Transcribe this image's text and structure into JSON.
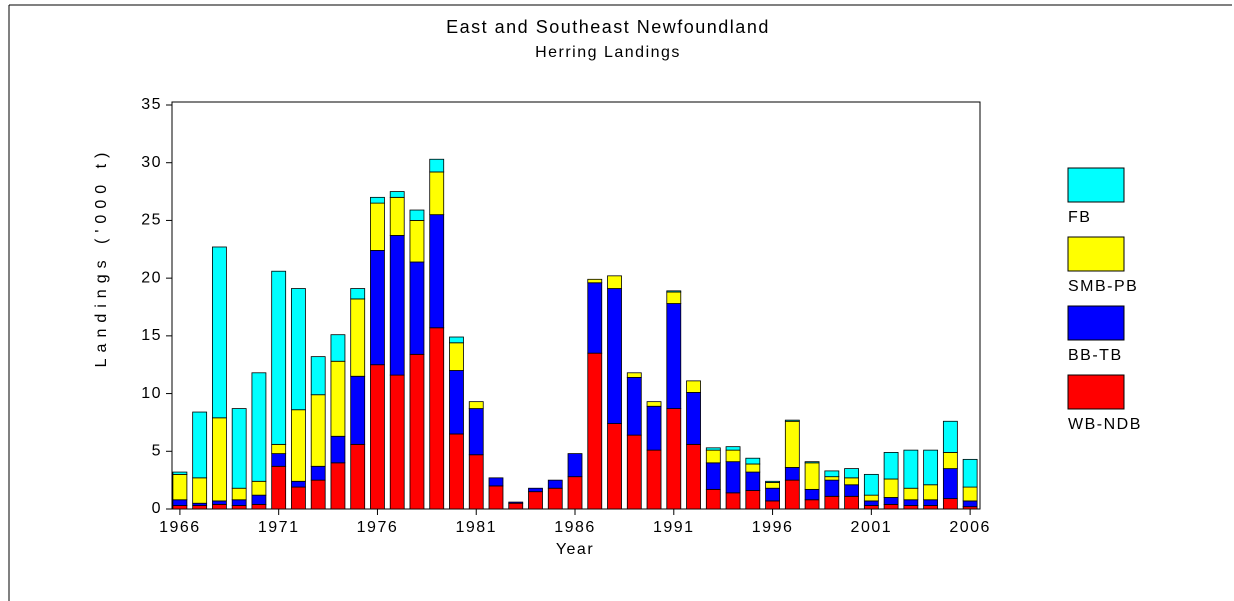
{
  "chart_data": {
    "type": "stacked-bar",
    "title": "East and Southeast Newfoundland",
    "subtitle": "Herring Landings",
    "x_label": "Year",
    "y_label": "Landings  ('000 t)",
    "x": [
      1966,
      1967,
      1968,
      1969,
      1970,
      1971,
      1972,
      1973,
      1974,
      1975,
      1976,
      1977,
      1978,
      1979,
      1980,
      1981,
      1982,
      1983,
      1984,
      1985,
      1986,
      1987,
      1988,
      1989,
      1990,
      1991,
      1992,
      1993,
      1994,
      1995,
      1996,
      1997,
      1998,
      1999,
      2000,
      2001,
      2002,
      2003,
      2004,
      2005,
      2006
    ],
    "xlim": [
      1965.6,
      2006.5
    ],
    "xticks": [
      1966,
      1971,
      1976,
      1981,
      1986,
      1991,
      1996,
      2001,
      2006
    ],
    "ylim": [
      0,
      35
    ],
    "yticks": [
      0,
      5,
      10,
      15,
      20,
      25,
      30,
      35
    ],
    "series": [
      {
        "name": "WB-NDB",
        "color": "#ff0000",
        "values": [
          0.3,
          0.3,
          0.4,
          0.3,
          0.4,
          3.7,
          1.9,
          2.5,
          4.0,
          5.6,
          12.5,
          11.6,
          13.4,
          15.7,
          6.5,
          4.7,
          2.0,
          0.5,
          1.5,
          1.8,
          2.8,
          13.5,
          7.4,
          6.4,
          5.1,
          8.7,
          5.6,
          1.7,
          1.4,
          1.6,
          0.7,
          2.5,
          0.8,
          1.1,
          1.1,
          0.3,
          0.4,
          0.3,
          0.3,
          0.9,
          0.2
        ]
      },
      {
        "name": "BB-TB",
        "color": "#0000ff",
        "values": [
          0.5,
          0.2,
          0.3,
          0.5,
          0.8,
          1.1,
          0.5,
          1.2,
          2.3,
          5.9,
          9.9,
          12.1,
          8.0,
          9.8,
          5.5,
          4.0,
          0.7,
          0.1,
          0.3,
          0.7,
          2.0,
          6.1,
          11.7,
          5.0,
          3.8,
          9.1,
          4.5,
          2.3,
          2.7,
          1.6,
          1.1,
          1.1,
          0.9,
          1.4,
          1.0,
          0.4,
          0.6,
          0.5,
          0.5,
          2.6,
          0.5
        ]
      },
      {
        "name": "SMB-PB",
        "color": "#ffff00",
        "values": [
          2.2,
          2.2,
          7.2,
          1.0,
          1.2,
          0.8,
          6.2,
          6.2,
          6.5,
          6.7,
          4.1,
          3.3,
          3.6,
          3.7,
          2.4,
          0.6,
          0,
          0,
          0,
          0,
          0,
          0.3,
          1.1,
          0.4,
          0.4,
          1.0,
          1.0,
          1.1,
          1.0,
          0.7,
          0.5,
          4.0,
          2.3,
          0.3,
          0.6,
          0.5,
          1.6,
          1.0,
          1.3,
          1.4,
          1.2
        ]
      },
      {
        "name": "FB",
        "color": "#00ffff",
        "values": [
          0.2,
          5.7,
          14.8,
          6.9,
          9.4,
          15.0,
          10.5,
          3.3,
          2.3,
          0.9,
          0.5,
          0.5,
          0.9,
          1.1,
          0.5,
          0,
          0,
          0,
          0,
          0,
          0,
          0,
          0,
          0,
          0,
          0.1,
          0,
          0.2,
          0.3,
          0.5,
          0.1,
          0.1,
          0.1,
          0.5,
          0.8,
          1.8,
          2.3,
          3.3,
          3.0,
          2.7,
          2.4
        ]
      }
    ]
  }
}
